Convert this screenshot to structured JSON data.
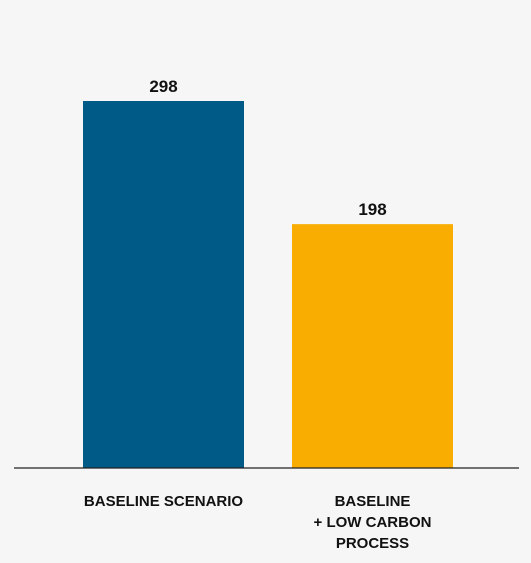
{
  "chart_data": {
    "type": "bar",
    "categories": [
      [
        "BASELINE SCENARIO"
      ],
      [
        "BASELINE",
        "+ LOW CARBON",
        "PROCESS"
      ]
    ],
    "values": [
      298,
      198
    ],
    "value_labels": [
      "298",
      "198"
    ],
    "colors": [
      "#005a87",
      "#f9ad00"
    ],
    "title": "",
    "xlabel": "",
    "ylabel": "",
    "ylim": [
      0,
      298
    ],
    "grid": false,
    "legend": "none"
  },
  "colors": {
    "background": "#f6f6f6",
    "axis": "#222222"
  }
}
